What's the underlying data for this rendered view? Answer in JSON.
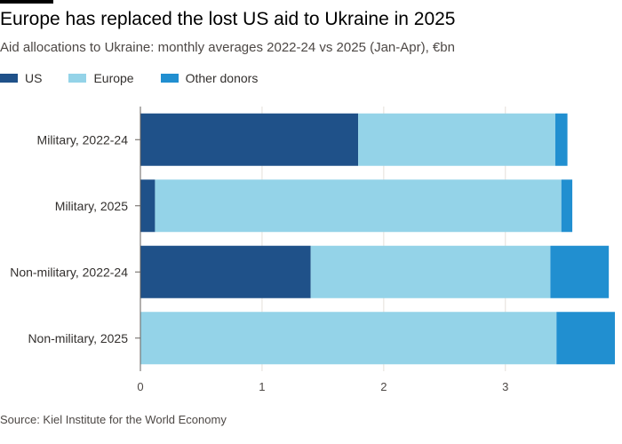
{
  "title": "Europe has replaced the lost US aid to Ukraine in 2025",
  "subtitle": "Aid allocations to Ukraine: monthly averages 2022-24 vs 2025 (Jan-Apr), €bn",
  "source": "Source: Kiel Institute for the World Economy",
  "colors": {
    "US": "#1f5189",
    "Europe": "#94d3e8",
    "Other donors": "#218fd0"
  },
  "chart_data": {
    "type": "bar",
    "orientation": "horizontal",
    "stacked": true,
    "categories": [
      "Military, 2022-24",
      "Military, 2025",
      "Non-military, 2022-24",
      "Non-military, 2025"
    ],
    "series": [
      {
        "name": "US",
        "values": [
          1.79,
          0.12,
          1.4,
          0
        ]
      },
      {
        "name": "Europe",
        "values": [
          1.62,
          3.34,
          1.97,
          3.42
        ]
      },
      {
        "name": "Other donors",
        "values": [
          0.1,
          0.09,
          0.48,
          0.48
        ]
      }
    ],
    "xticks": [
      "0",
      "1",
      "2",
      "3"
    ],
    "xlim": [
      0,
      3.9
    ],
    "xlabel": "",
    "ylabel": "",
    "grid": true,
    "legend": "top-left"
  }
}
